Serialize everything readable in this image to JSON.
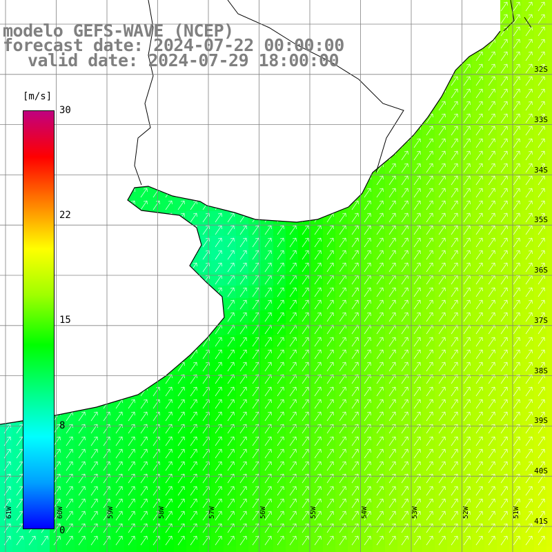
{
  "title": {
    "line1": "modelo GEFS-WAVE (NCEP)",
    "line2": "forecast date: 2024-07-22 00:00:00",
    "line3": "valid date: 2024-07-29 18:00:00"
  },
  "colorbar": {
    "unit": "[m/s]",
    "ticks": [
      "30",
      "22",
      "15",
      "8",
      "0"
    ],
    "tick_values": [
      30,
      22,
      15,
      8,
      0
    ],
    "min": 0,
    "max": 30,
    "colors": [
      "#0000ff",
      "#00a0ff",
      "#00ffff",
      "#00ff80",
      "#00ff00",
      "#a0ff00",
      "#ffff00",
      "#ff8000",
      "#ff0000",
      "#c00080"
    ]
  },
  "grid": {
    "lat_labels": [
      "32S",
      "33S",
      "34S",
      "35S",
      "36S",
      "37S",
      "38S",
      "39S",
      "40S",
      "41S"
    ],
    "lon_labels": [
      "61W",
      "60W",
      "59W",
      "58W",
      "57W",
      "56W",
      "55W",
      "54W",
      "53W",
      "52W",
      "51W"
    ]
  },
  "map_colors": {
    "land": "#ffffff",
    "coast": "#000000",
    "gridline": "#808080",
    "arrow": "#ffffff"
  }
}
